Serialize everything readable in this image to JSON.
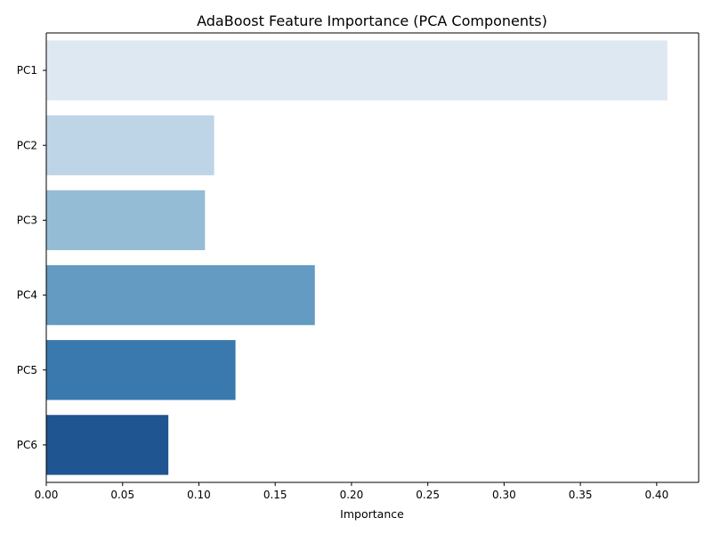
{
  "chart_data": {
    "type": "bar",
    "orientation": "horizontal",
    "title": "AdaBoost Feature Importance (PCA Components)",
    "xlabel": "Importance",
    "ylabel": "",
    "categories": [
      "PC1",
      "PC2",
      "PC3",
      "PC4",
      "PC5",
      "PC6"
    ],
    "values": [
      0.407,
      0.11,
      0.104,
      0.176,
      0.124,
      0.08
    ],
    "xlim": [
      0,
      0.4275
    ],
    "xticks": [
      0.0,
      0.05,
      0.1,
      0.15,
      0.2,
      0.25,
      0.3,
      0.35,
      0.4
    ],
    "xtick_labels": [
      "0.00",
      "0.05",
      "0.10",
      "0.15",
      "0.20",
      "0.25",
      "0.30",
      "0.35",
      "0.40"
    ],
    "bar_colors": [
      "#dee8f3",
      "#bed4e7",
      "#94bcd5",
      "#639bc2",
      "#3a79ae",
      "#1f5590"
    ],
    "grid": false,
    "legend": "none"
  }
}
